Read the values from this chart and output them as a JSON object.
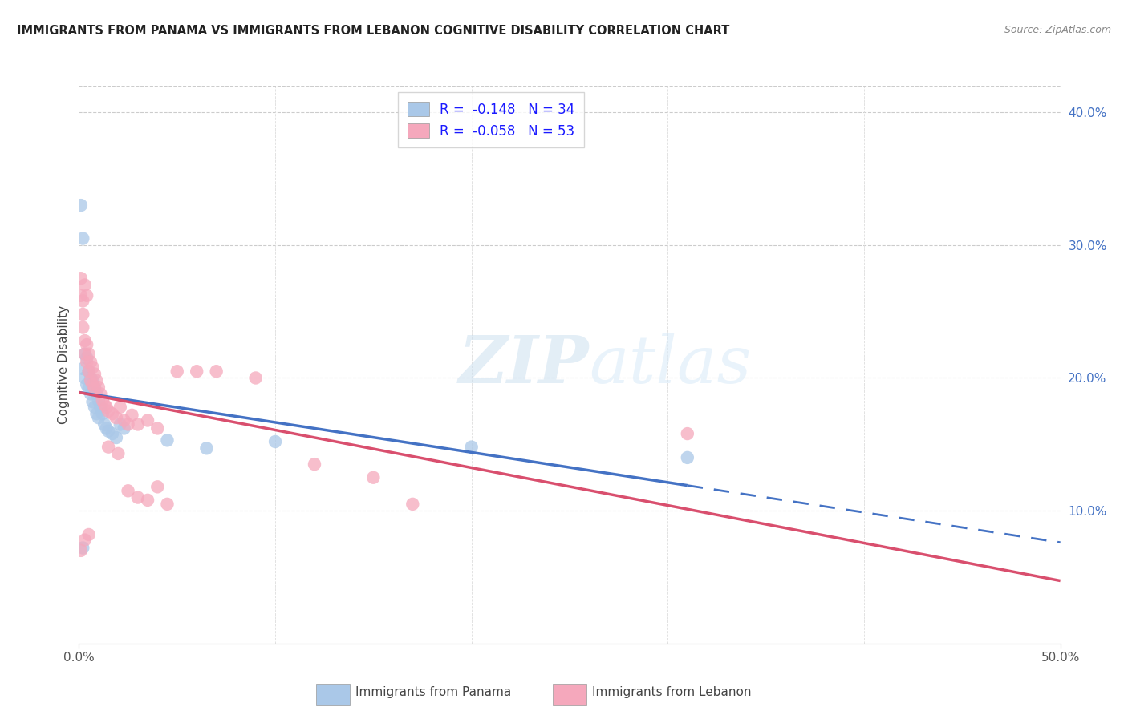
{
  "title": "IMMIGRANTS FROM PANAMA VS IMMIGRANTS FROM LEBANON COGNITIVE DISABILITY CORRELATION CHART",
  "source": "Source: ZipAtlas.com",
  "ylabel": "Cognitive Disability",
  "xlim": [
    0.0,
    0.5
  ],
  "ylim": [
    0.0,
    0.42
  ],
  "xtick_vals": [
    0.0,
    0.1,
    0.2,
    0.3,
    0.4,
    0.5
  ],
  "xtick_labels": [
    "0.0%",
    "",
    "",
    "",
    "",
    "50.0%"
  ],
  "ytick_right_vals": [
    0.1,
    0.2,
    0.3,
    0.4
  ],
  "ytick_right_labels": [
    "10.0%",
    "20.0%",
    "30.0%",
    "40.0%"
  ],
  "legend_R_panama": "-0.148",
  "legend_N_panama": "34",
  "legend_R_lebanon": "-0.058",
  "legend_N_lebanon": "53",
  "panama_color": "#aac8e8",
  "lebanon_color": "#f5a8bc",
  "trendline_panama_color": "#4472c4",
  "trendline_lebanon_color": "#d94f6e",
  "watermark_zip": "ZIP",
  "watermark_atlas": "atlas",
  "panama_scatter": [
    [
      0.001,
      0.33
    ],
    [
      0.002,
      0.305
    ],
    [
      0.002,
      0.207
    ],
    [
      0.003,
      0.218
    ],
    [
      0.003,
      0.2
    ],
    [
      0.004,
      0.215
    ],
    [
      0.004,
      0.195
    ],
    [
      0.005,
      0.205
    ],
    [
      0.005,
      0.192
    ],
    [
      0.006,
      0.2
    ],
    [
      0.006,
      0.188
    ],
    [
      0.007,
      0.198
    ],
    [
      0.007,
      0.182
    ],
    [
      0.008,
      0.193
    ],
    [
      0.008,
      0.178
    ],
    [
      0.009,
      0.188
    ],
    [
      0.009,
      0.173
    ],
    [
      0.01,
      0.183
    ],
    [
      0.01,
      0.17
    ],
    [
      0.011,
      0.178
    ],
    [
      0.012,
      0.173
    ],
    [
      0.013,
      0.165
    ],
    [
      0.014,
      0.162
    ],
    [
      0.015,
      0.16
    ],
    [
      0.017,
      0.158
    ],
    [
      0.019,
      0.155
    ],
    [
      0.021,
      0.165
    ],
    [
      0.023,
      0.162
    ],
    [
      0.045,
      0.153
    ],
    [
      0.065,
      0.147
    ],
    [
      0.1,
      0.152
    ],
    [
      0.2,
      0.148
    ],
    [
      0.31,
      0.14
    ],
    [
      0.002,
      0.072
    ]
  ],
  "lebanon_scatter": [
    [
      0.001,
      0.262
    ],
    [
      0.001,
      0.275
    ],
    [
      0.002,
      0.258
    ],
    [
      0.002,
      0.248
    ],
    [
      0.003,
      0.27
    ],
    [
      0.004,
      0.262
    ],
    [
      0.002,
      0.238
    ],
    [
      0.003,
      0.228
    ],
    [
      0.003,
      0.218
    ],
    [
      0.004,
      0.225
    ],
    [
      0.004,
      0.212
    ],
    [
      0.005,
      0.218
    ],
    [
      0.005,
      0.205
    ],
    [
      0.006,
      0.212
    ],
    [
      0.006,
      0.198
    ],
    [
      0.007,
      0.208
    ],
    [
      0.007,
      0.195
    ],
    [
      0.008,
      0.203
    ],
    [
      0.008,
      0.192
    ],
    [
      0.009,
      0.198
    ],
    [
      0.01,
      0.193
    ],
    [
      0.011,
      0.188
    ],
    [
      0.012,
      0.183
    ],
    [
      0.013,
      0.18
    ],
    [
      0.014,
      0.178
    ],
    [
      0.015,
      0.175
    ],
    [
      0.017,
      0.173
    ],
    [
      0.019,
      0.17
    ],
    [
      0.021,
      0.178
    ],
    [
      0.023,
      0.168
    ],
    [
      0.025,
      0.165
    ],
    [
      0.027,
      0.172
    ],
    [
      0.03,
      0.165
    ],
    [
      0.035,
      0.168
    ],
    [
      0.04,
      0.162
    ],
    [
      0.05,
      0.205
    ],
    [
      0.06,
      0.205
    ],
    [
      0.07,
      0.205
    ],
    [
      0.09,
      0.2
    ],
    [
      0.025,
      0.115
    ],
    [
      0.03,
      0.11
    ],
    [
      0.035,
      0.108
    ],
    [
      0.04,
      0.118
    ],
    [
      0.045,
      0.105
    ],
    [
      0.003,
      0.078
    ],
    [
      0.005,
      0.082
    ],
    [
      0.001,
      0.07
    ],
    [
      0.17,
      0.105
    ],
    [
      0.31,
      0.158
    ],
    [
      0.12,
      0.135
    ],
    [
      0.15,
      0.125
    ],
    [
      0.015,
      0.148
    ],
    [
      0.02,
      0.143
    ]
  ]
}
